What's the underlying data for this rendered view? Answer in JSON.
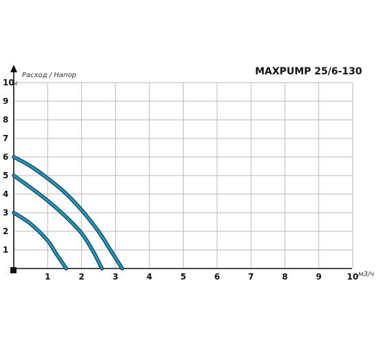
{
  "chart_data": {
    "type": "line",
    "title": "MAXPUMP 25/6-130",
    "ylabel_top": "Расход / Напор",
    "yunit": "м",
    "xunit": "м3/ч",
    "xlim": [
      0,
      10
    ],
    "ylim": [
      0,
      10
    ],
    "grid": true,
    "x_ticks": [
      "1",
      "2",
      "3",
      "4",
      "5",
      "6",
      "7",
      "8",
      "9",
      "10"
    ],
    "y_ticks": [
      "1",
      "2",
      "3",
      "4",
      "5",
      "6",
      "7",
      "8",
      "9",
      "10"
    ],
    "line_color": "#1d9cc7",
    "series": [
      {
        "x": [
          0,
          0.5,
          1,
          1.5,
          2,
          2.5,
          2.85,
          3.2
        ],
        "y": [
          6,
          5.5,
          4.85,
          4.1,
          3.15,
          2.0,
          1.0,
          0
        ]
      },
      {
        "x": [
          0,
          0.5,
          1,
          1.5,
          2,
          2.35,
          2.6
        ],
        "y": [
          5,
          4.35,
          3.65,
          2.85,
          1.9,
          0.9,
          0
        ]
      },
      {
        "x": [
          0,
          0.5,
          1,
          1.25,
          1.55
        ],
        "y": [
          3,
          2.4,
          1.5,
          0.8,
          0
        ]
      }
    ]
  }
}
